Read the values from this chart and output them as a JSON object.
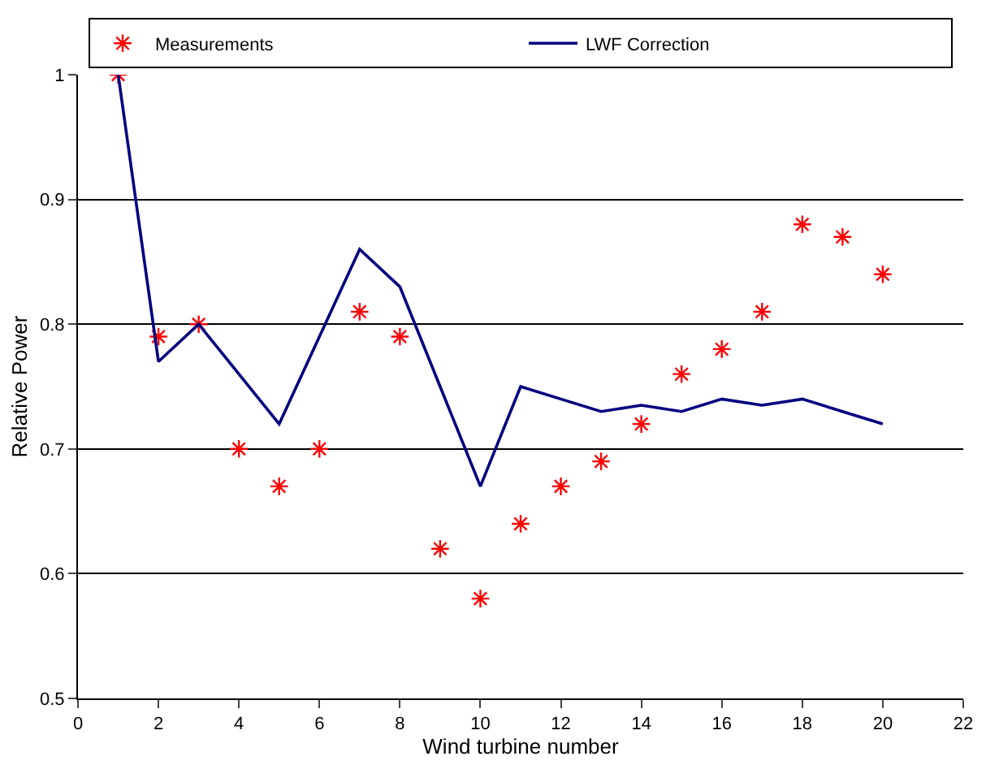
{
  "chart_data": {
    "type": "scatter",
    "xlabel": "Wind turbine number",
    "ylabel": "Relative Power",
    "x": [
      1,
      2,
      3,
      4,
      5,
      6,
      7,
      8,
      9,
      10,
      11,
      12,
      13,
      14,
      15,
      16,
      17,
      18,
      19,
      20
    ],
    "series": [
      {
        "name": "Measurements",
        "marker": "cross",
        "color": "#ff0000",
        "values": [
          1.0,
          0.79,
          0.8,
          0.7,
          0.67,
          0.7,
          0.81,
          0.79,
          0.62,
          0.58,
          0.64,
          0.67,
          0.69,
          0.72,
          0.76,
          0.78,
          0.81,
          0.88,
          0.87,
          0.84
        ]
      },
      {
        "name": "LWF Correction",
        "type": "line",
        "marker": "none",
        "line_style": "solid",
        "color": "#000080",
        "values": [
          1.0,
          0.77,
          0.8,
          0.76,
          0.72,
          0.79,
          0.86,
          0.83,
          0.75,
          0.67,
          0.75,
          0.74,
          0.73,
          0.735,
          0.73,
          0.74,
          0.735,
          0.74,
          0.73,
          0.72
        ]
      }
    ],
    "xlim": [
      0,
      22
    ],
    "xticks": [
      0,
      2,
      4,
      6,
      8,
      10,
      12,
      14,
      16,
      18,
      20,
      22
    ],
    "ylim": [
      0.5,
      1.0
    ],
    "yticks": [
      0.5,
      0.6,
      0.7,
      0.8,
      0.9,
      1
    ],
    "grid": "y",
    "legend": "top"
  }
}
